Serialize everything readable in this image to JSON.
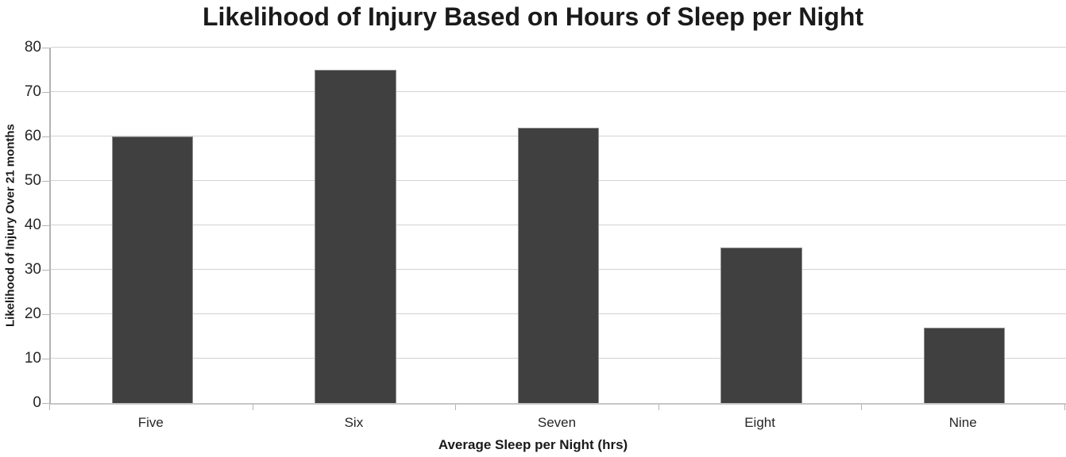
{
  "chart_data": {
    "type": "bar",
    "title": "Likelihood of Injury Based on Hours of Sleep per Night",
    "xlabel": "Average Sleep per Night (hrs)",
    "ylabel": "Likelihood of Injury Over 21 months",
    "categories": [
      "Five",
      "Six",
      "Seven",
      "Eight",
      "Nine"
    ],
    "values": [
      60,
      75,
      62,
      35,
      17
    ],
    "ylim": [
      0,
      80
    ],
    "yticks": [
      0,
      10,
      20,
      30,
      40,
      50,
      60,
      70,
      80
    ],
    "grid": true,
    "legend": false,
    "colors": {
      "bar_fill": "#404040",
      "bar_border": "#8f8f8f",
      "gridline": "#d2d2d2",
      "axis_line": "#b3b3b3",
      "text": "#1a1a1a"
    }
  }
}
